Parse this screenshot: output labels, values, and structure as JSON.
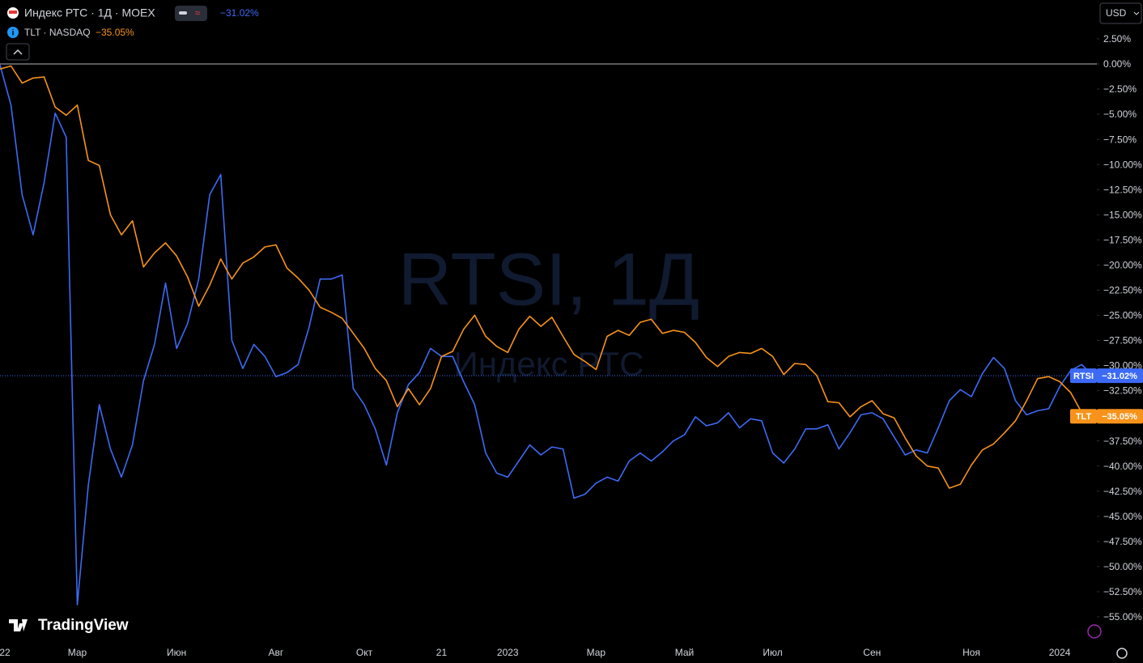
{
  "chart_data": {
    "type": "line",
    "title": "Индекс РТС · 1Д · MOEX",
    "subtitle": "TLT · NASDAQ",
    "watermark": "RTSI, 1Д",
    "watermark_subtitle": "Индекс РТС",
    "currency": "USD",
    "brand": "TradingView",
    "baseline": 0,
    "grid": false,
    "categories": [
      "22",
      null,
      null,
      null,
      null,
      null,
      null,
      "Мар",
      null,
      null,
      null,
      null,
      null,
      null,
      null,
      null,
      "Июн",
      null,
      null,
      null,
      null,
      null,
      null,
      null,
      null,
      "Авг",
      null,
      null,
      null,
      null,
      null,
      null,
      null,
      "Окт",
      null,
      null,
      null,
      null,
      null,
      null,
      "21",
      null,
      null,
      null,
      null,
      null,
      "2023",
      null,
      null,
      null,
      null,
      null,
      null,
      null,
      "Мар",
      null,
      null,
      null,
      null,
      null,
      null,
      null,
      "Май",
      null,
      null,
      null,
      null,
      null,
      null,
      null,
      "Июл",
      null,
      null,
      null,
      null,
      null,
      null,
      null,
      null,
      "Сен",
      null,
      null,
      null,
      null,
      null,
      null,
      null,
      null,
      "Ноя",
      null,
      null,
      null,
      null,
      null,
      null,
      null,
      "2024",
      null,
      null,
      null
    ],
    "series": [
      {
        "name": "RTSI",
        "color": "#3d6af5",
        "price_line": true,
        "values": [
          -0.1,
          -4.1,
          -13.0,
          -17.0,
          -11.8,
          -4.9,
          -7.3,
          -53.8,
          -41.9,
          -33.9,
          -38.3,
          -41.1,
          -37.9,
          -31.5,
          -27.9,
          -21.8,
          -28.3,
          -25.8,
          -21.4,
          -13.0,
          -11.0,
          -27.5,
          -30.3,
          -27.9,
          -29.1,
          -31.1,
          -30.7,
          -29.9,
          -26.2,
          -21.4,
          -21.4,
          -21.0,
          -32.3,
          -33.9,
          -36.3,
          -39.9,
          -34.7,
          -31.9,
          -30.7,
          -28.3,
          -29.1,
          -29.1,
          -31.6,
          -33.9,
          -38.7,
          -40.7,
          -41.1,
          -39.5,
          -37.9,
          -38.9,
          -38.1,
          -38.3,
          -43.2,
          -42.8,
          -41.7,
          -41.1,
          -41.5,
          -39.5,
          -38.7,
          -39.5,
          -38.6,
          -37.5,
          -36.9,
          -35.1,
          -36.0,
          -35.7,
          -34.7,
          -36.2,
          -35.3,
          -35.5,
          -38.7,
          -39.7,
          -38.3,
          -36.3,
          -36.3,
          -35.9,
          -38.3,
          -36.7,
          -34.9,
          -34.7,
          -35.3,
          -37.1,
          -38.9,
          -38.4,
          -38.7,
          -36.2,
          -33.5,
          -32.4,
          -33.1,
          -30.8,
          -29.2,
          -30.3,
          -33.5,
          -34.9,
          -34.5,
          -34.3,
          -32.1,
          -30.5,
          -29.9,
          -31.02
        ],
        "value_labels": [
          null,
          null,
          null,
          null,
          null,
          null,
          null,
          null,
          null,
          null,
          null,
          null,
          null,
          null,
          null,
          null,
          null,
          null,
          null,
          null,
          null,
          null,
          null,
          null,
          null,
          null,
          null,
          null,
          null,
          null,
          null,
          null,
          null,
          null,
          null,
          null,
          null,
          null,
          null,
          null,
          null,
          null,
          null,
          null,
          null,
          null,
          null,
          null,
          null,
          null,
          null,
          null,
          null,
          null,
          null,
          null,
          null,
          null,
          null,
          null,
          null,
          null,
          null,
          null,
          null,
          null,
          null,
          null,
          null,
          null,
          null,
          null,
          null,
          null,
          null,
          null,
          null,
          null,
          null,
          null,
          null,
          null,
          null,
          null,
          null,
          null,
          null,
          null,
          null,
          null,
          null,
          null,
          null,
          null,
          null,
          null,
          null,
          null,
          null,
          "−31.02%"
        ]
      },
      {
        "name": "TLT",
        "color": "#f7931a",
        "price_line": false,
        "values": [
          -0.5,
          -0.2,
          -1.9,
          -1.4,
          -1.3,
          -4.3,
          -5.1,
          -4.1,
          -9.6,
          -10.1,
          -15.0,
          -17.0,
          -15.6,
          -20.2,
          -18.8,
          -17.8,
          -19.1,
          -21.2,
          -24.1,
          -22.0,
          -19.4,
          -21.4,
          -19.8,
          -19.2,
          -18.2,
          -18.0,
          -20.3,
          -21.3,
          -22.5,
          -24.2,
          -24.7,
          -25.3,
          -26.8,
          -28.3,
          -30.3,
          -31.5,
          -34.1,
          -32.3,
          -33.9,
          -32.3,
          -29.1,
          -28.6,
          -26.4,
          -25.0,
          -27.1,
          -28.1,
          -28.7,
          -26.4,
          -25.1,
          -26.1,
          -25.2,
          -27.1,
          -28.9,
          -29.6,
          -30.4,
          -27.1,
          -26.5,
          -27.0,
          -25.7,
          -25.4,
          -26.8,
          -26.5,
          -26.7,
          -27.7,
          -29.2,
          -30.1,
          -29.1,
          -28.7,
          -28.8,
          -28.3,
          -29.1,
          -30.9,
          -29.8,
          -29.9,
          -31.0,
          -33.6,
          -33.7,
          -35.1,
          -34.1,
          -33.5,
          -34.8,
          -35.2,
          -37.2,
          -39.0,
          -40.0,
          -40.2,
          -42.2,
          -41.8,
          -39.9,
          -38.4,
          -37.8,
          -36.7,
          -35.5,
          -33.5,
          -31.3,
          -31.1,
          -31.6,
          -32.7,
          -34.7,
          -35.05
        ],
        "value_labels": [
          null,
          null,
          null,
          null,
          null,
          null,
          null,
          null,
          null,
          null,
          null,
          null,
          null,
          null,
          null,
          null,
          null,
          null,
          null,
          null,
          null,
          null,
          null,
          null,
          null,
          null,
          null,
          null,
          null,
          null,
          null,
          null,
          null,
          null,
          null,
          null,
          null,
          null,
          null,
          null,
          null,
          null,
          null,
          null,
          null,
          null,
          null,
          null,
          null,
          null,
          null,
          null,
          null,
          null,
          null,
          null,
          null,
          null,
          null,
          null,
          null,
          null,
          null,
          null,
          null,
          null,
          null,
          null,
          null,
          null,
          null,
          null,
          null,
          null,
          null,
          null,
          null,
          null,
          null,
          null,
          null,
          null,
          null,
          null,
          null,
          null,
          null,
          null,
          null,
          null,
          null,
          null,
          null,
          null,
          null,
          null,
          null,
          null,
          null,
          "−35.05%"
        ]
      }
    ],
    "ylim": [
      -57.66,
      6.36
    ],
    "yticks": [
      {
        "value": 2.5,
        "label": "2.50%"
      },
      {
        "value": 0,
        "label": "0.00%"
      },
      {
        "value": -2.5,
        "label": "−2.50%"
      },
      {
        "value": -5,
        "label": "−5.00%"
      },
      {
        "value": -7.5,
        "label": "−7.50%"
      },
      {
        "value": -10,
        "label": "−10.00%"
      },
      {
        "value": -12.5,
        "label": "−12.50%"
      },
      {
        "value": -15,
        "label": "−15.00%"
      },
      {
        "value": -17.5,
        "label": "−17.50%"
      },
      {
        "value": -20,
        "label": "−20.00%"
      },
      {
        "value": -22.5,
        "label": "−22.50%"
      },
      {
        "value": -25,
        "label": "−25.00%"
      },
      {
        "value": -27.5,
        "label": "−27.50%"
      },
      {
        "value": -30,
        "label": "−30.00%"
      },
      {
        "value": -32.5,
        "label": "−32.50%"
      },
      {
        "value": -35,
        "label": "−35.00%"
      },
      {
        "value": -37.5,
        "label": "−37.50%"
      },
      {
        "value": -40,
        "label": "−40.00%"
      },
      {
        "value": -42.5,
        "label": "−42.50%"
      },
      {
        "value": -45,
        "label": "−45.00%"
      },
      {
        "value": -47.5,
        "label": "−47.50%"
      },
      {
        "value": -50,
        "label": "−50.00%"
      },
      {
        "value": -52.5,
        "label": "−52.50%"
      },
      {
        "value": -55,
        "label": "−55.00%"
      }
    ]
  }
}
